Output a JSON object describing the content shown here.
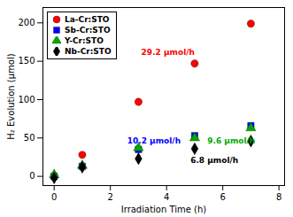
{
  "chart_data": {
    "type": "scatter",
    "xlabel": "Irradiation Time (h)",
    "ylabel": "H₂ Evolution (μmol)",
    "x": [
      0,
      1,
      3,
      5,
      7
    ],
    "series": [
      {
        "name": "La-Cr:STO",
        "color": "#ff0000",
        "marker": "circle",
        "values": [
          0,
          28,
          97,
          147,
          199
        ]
      },
      {
        "name": "Sb-Cr:STO",
        "color": "#0000ff",
        "marker": "square",
        "values": [
          0,
          13,
          35,
          53,
          66
        ]
      },
      {
        "name": "Y-Cr:STO",
        "color": "#00aa00",
        "marker": "triangle",
        "values": [
          2,
          14,
          37,
          50,
          63
        ]
      },
      {
        "name": "Nb-Cr:STO",
        "color": "#000000",
        "marker": "diamond",
        "values": [
          -2,
          12,
          23,
          36,
          46
        ]
      }
    ],
    "annotations": [
      {
        "text": "29.2 μmol/h",
        "x": 3.1,
        "y": 158,
        "color": "#ff0000"
      },
      {
        "text": "10.2 μmol/h",
        "x": 2.6,
        "y": 43,
        "color": "#0000ff"
      },
      {
        "text": "9.6 μmol/h",
        "x": 5.45,
        "y": 43,
        "color": "#00aa00"
      },
      {
        "text": "6.8 μmol/h",
        "x": 4.85,
        "y": 17,
        "color": "#000000"
      }
    ],
    "xlim": [
      -0.4,
      8.2
    ],
    "ylim": [
      -12,
      220
    ],
    "xticks": [
      0,
      2,
      4,
      6,
      8
    ],
    "yticks": [
      0,
      50,
      100,
      150,
      200
    ],
    "legend": "upper left",
    "grid": false
  }
}
